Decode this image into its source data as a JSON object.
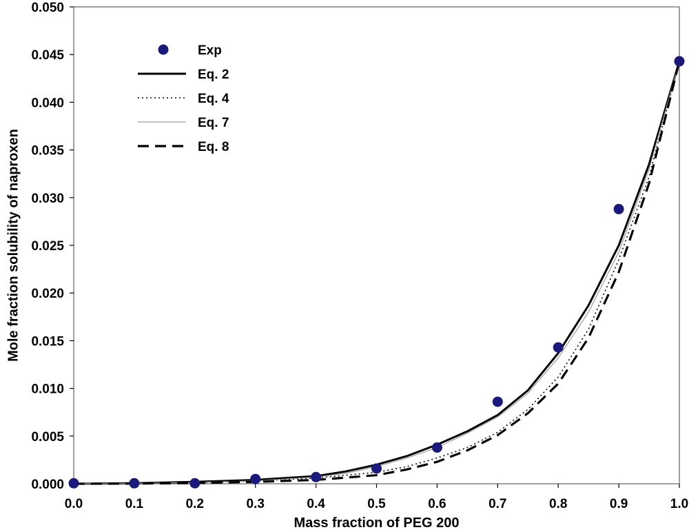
{
  "chart_data": {
    "type": "scatter",
    "title": "",
    "xlabel": "Mass fraction of PEG 200",
    "ylabel": "Mole fraction solubility of naproxen",
    "xlim": [
      0.0,
      1.0
    ],
    "ylim": [
      0.0,
      0.05
    ],
    "x_ticks": [
      "0.0",
      "0.1",
      "0.2",
      "0.3",
      "0.4",
      "0.5",
      "0.6",
      "0.7",
      "0.8",
      "0.9",
      "1.0"
    ],
    "y_ticks": [
      "0.000",
      "0.005",
      "0.010",
      "0.015",
      "0.020",
      "0.025",
      "0.030",
      "0.035",
      "0.040",
      "0.045",
      "0.050"
    ],
    "grid": false,
    "legend_position": "top-left",
    "series": [
      {
        "name": "Exp",
        "kind": "points",
        "color": "#1a1a7e",
        "x": [
          0.0,
          0.1,
          0.2,
          0.3,
          0.4,
          0.5,
          0.6,
          0.7,
          0.8,
          0.9,
          1.0
        ],
        "y": [
          5e-05,
          5e-05,
          5e-05,
          0.0005,
          0.0007,
          0.0016,
          0.0038,
          0.0086,
          0.0143,
          0.0288,
          0.0443
        ]
      },
      {
        "name": "Eq. 2",
        "kind": "line",
        "style": "solid-thick",
        "color": "#000000",
        "x": [
          0.0,
          0.1,
          0.2,
          0.3,
          0.4,
          0.45,
          0.5,
          0.55,
          0.6,
          0.65,
          0.7,
          0.75,
          0.8,
          0.85,
          0.9,
          0.95,
          1.0
        ],
        "y": [
          0.0,
          5e-05,
          0.0002,
          0.0004,
          0.0008,
          0.0013,
          0.002,
          0.0029,
          0.0041,
          0.0055,
          0.0072,
          0.0098,
          0.0137,
          0.0187,
          0.025,
          0.0335,
          0.0443
        ]
      },
      {
        "name": "Eq. 4",
        "kind": "line",
        "style": "dotted",
        "color": "#000000",
        "x": [
          0.0,
          0.1,
          0.2,
          0.3,
          0.4,
          0.5,
          0.55,
          0.6,
          0.65,
          0.7,
          0.75,
          0.8,
          0.85,
          0.9,
          0.95,
          1.0
        ],
        "y": [
          0.0,
          3e-05,
          0.0001,
          0.0003,
          0.0006,
          0.0012,
          0.0018,
          0.0027,
          0.0038,
          0.0054,
          0.0078,
          0.0112,
          0.0162,
          0.0235,
          0.0322,
          0.0443
        ]
      },
      {
        "name": "Eq. 7",
        "kind": "line",
        "style": "thin-grey",
        "color": "#9a9a9a",
        "x": [
          0.0,
          0.1,
          0.2,
          0.3,
          0.4,
          0.45,
          0.5,
          0.55,
          0.6,
          0.65,
          0.7,
          0.75,
          0.8,
          0.85,
          0.9,
          0.95,
          1.0
        ],
        "y": [
          0.0,
          4e-05,
          0.00015,
          0.0003,
          0.0007,
          0.0011,
          0.0018,
          0.0027,
          0.0038,
          0.0053,
          0.007,
          0.0095,
          0.0132,
          0.018,
          0.0243,
          0.033,
          0.0443
        ]
      },
      {
        "name": "Eq. 8",
        "kind": "line",
        "style": "dashed-thick",
        "color": "#000000",
        "x": [
          0.0,
          0.1,
          0.2,
          0.3,
          0.4,
          0.5,
          0.55,
          0.6,
          0.65,
          0.7,
          0.75,
          0.8,
          0.85,
          0.9,
          0.95,
          1.0
        ],
        "y": [
          0.0,
          2e-05,
          8e-05,
          0.0002,
          0.0004,
          0.0009,
          0.0015,
          0.0023,
          0.0035,
          0.0051,
          0.0074,
          0.0105,
          0.0153,
          0.0222,
          0.0315,
          0.0443
        ]
      }
    ]
  }
}
